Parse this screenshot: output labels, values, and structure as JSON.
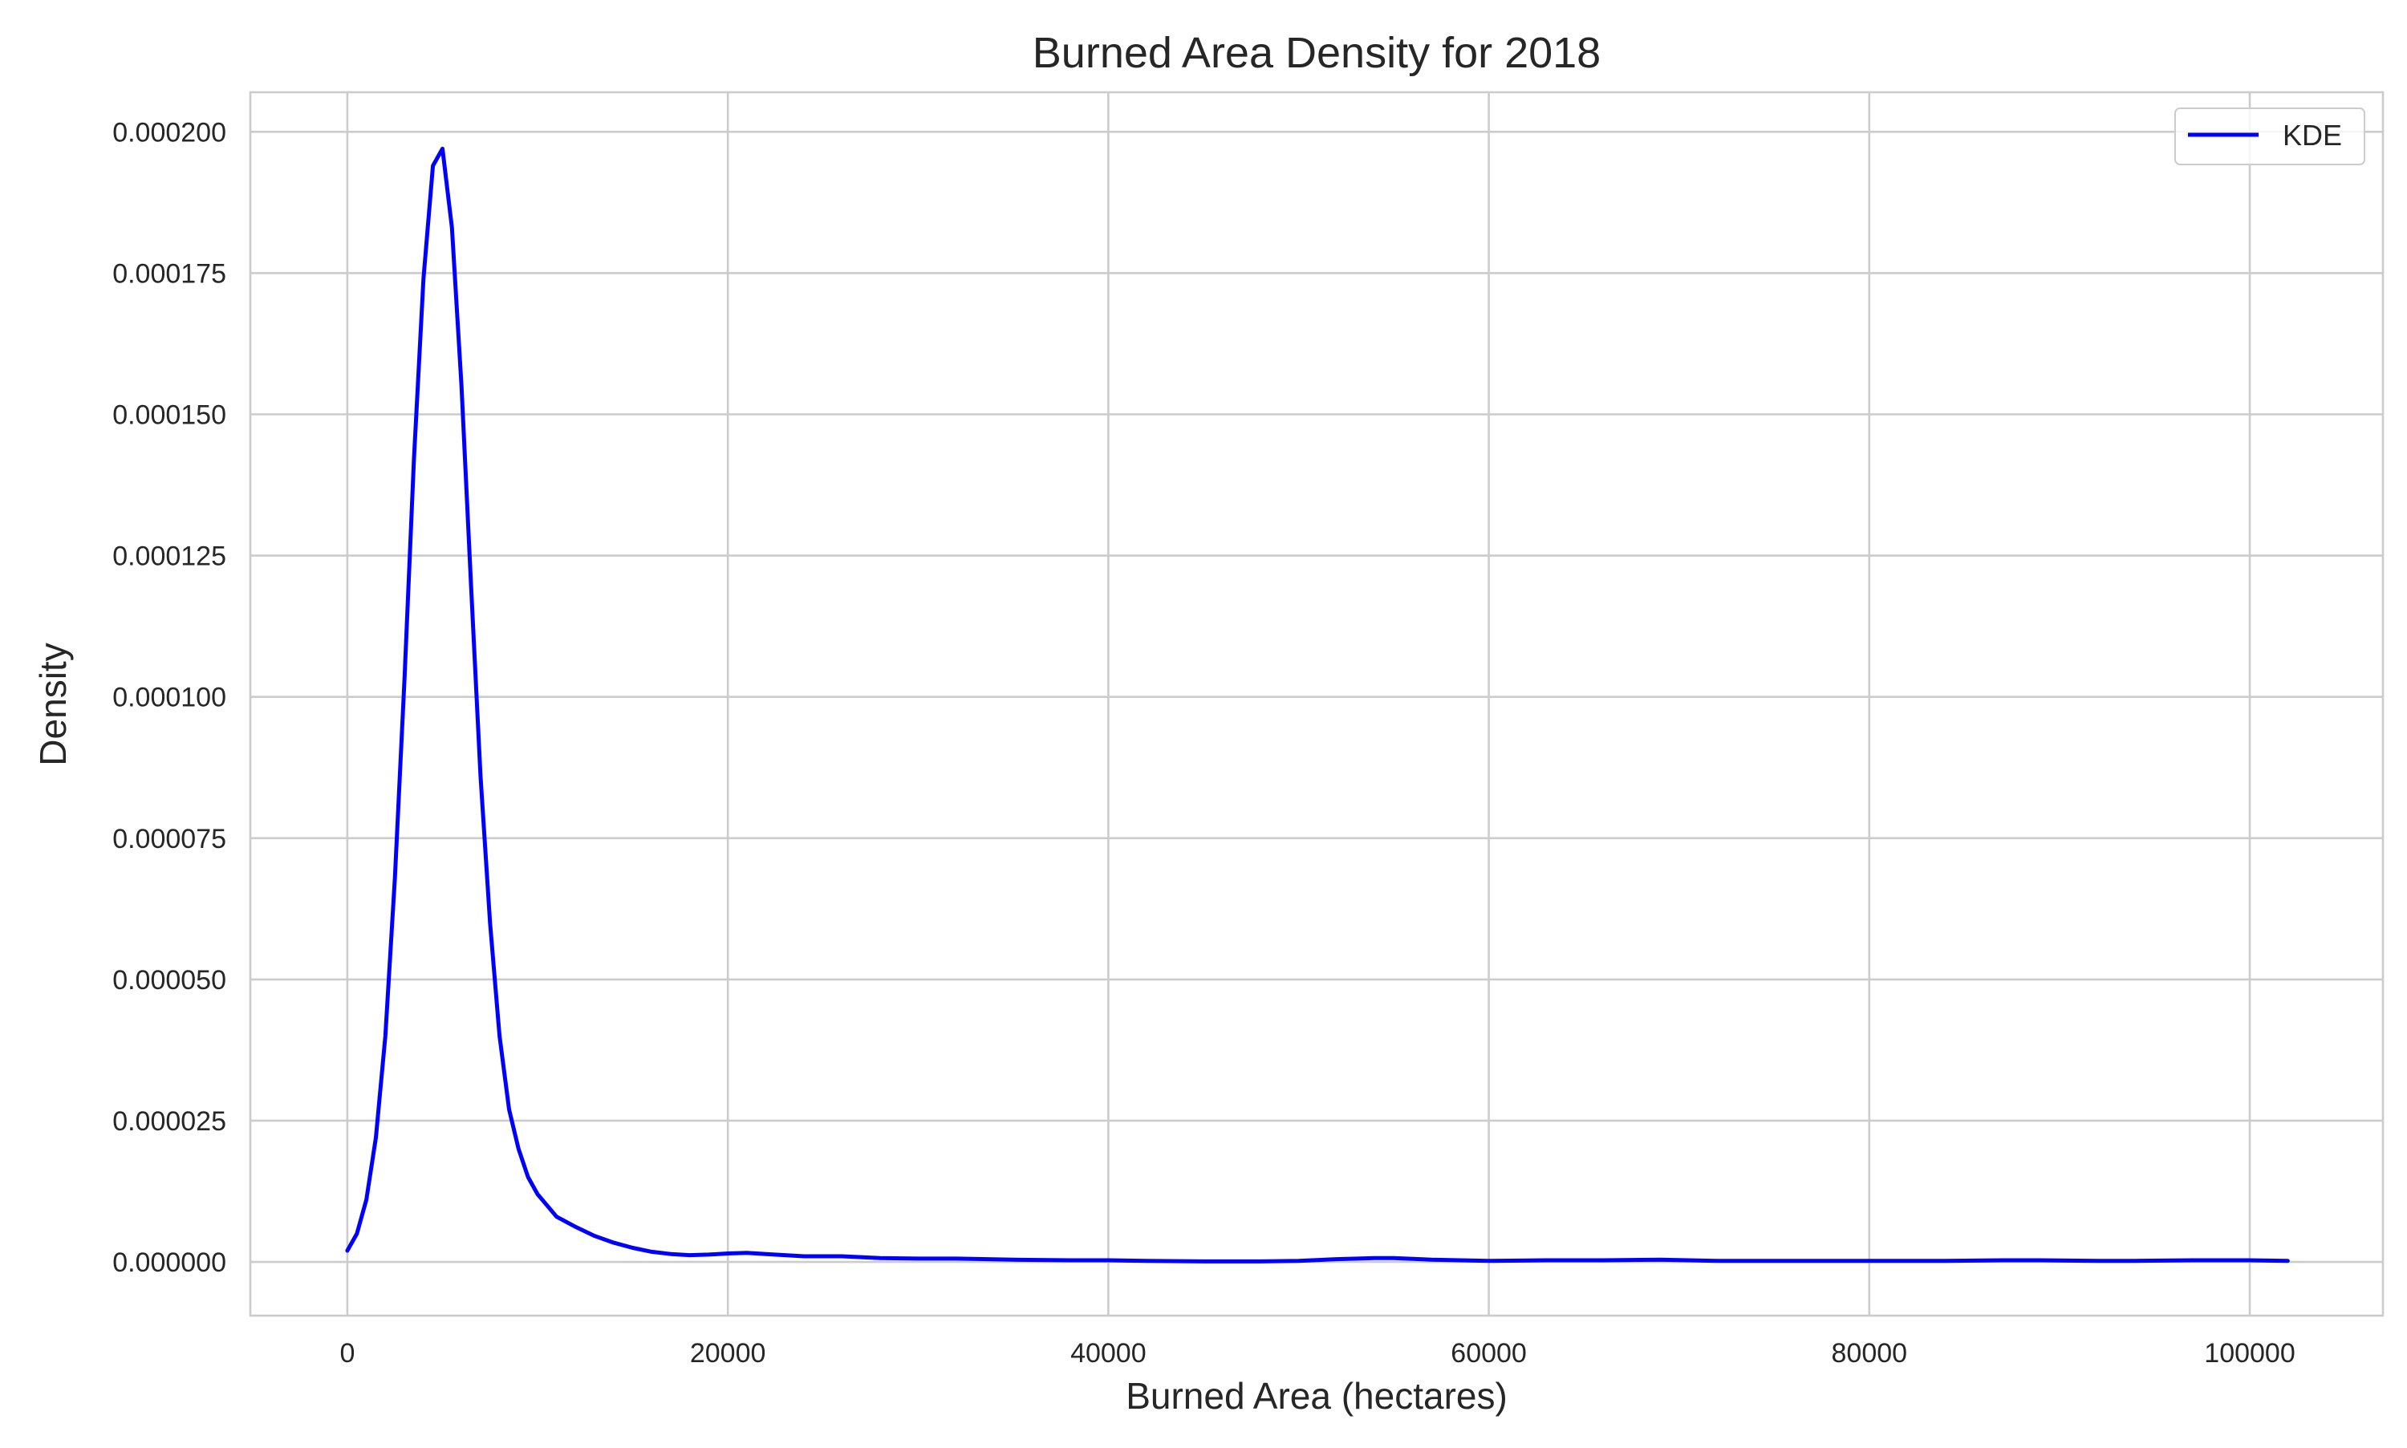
{
  "chart_data": {
    "type": "line",
    "title": "Burned Area Density for 2018",
    "xlabel": "Burned Area (hectares)",
    "ylabel": "Density",
    "xlim": [
      -5100,
      107000
    ],
    "ylim": [
      -9.5e-06,
      0.000207
    ],
    "x_ticks": [
      0,
      20000,
      40000,
      60000,
      80000,
      100000
    ],
    "x_tick_labels": [
      "0",
      "20000",
      "40000",
      "60000",
      "80000",
      "100000"
    ],
    "y_ticks": [
      0,
      2.5e-05,
      5e-05,
      7.5e-05,
      0.0001,
      0.000125,
      0.00015,
      0.000175,
      0.0002
    ],
    "y_tick_labels": [
      "0.000000",
      "0.000025",
      "0.000050",
      "0.000075",
      "0.000100",
      "0.000125",
      "0.000150",
      "0.000175",
      "0.000200"
    ],
    "grid": true,
    "legend_position": "top-right",
    "series": [
      {
        "name": "KDE",
        "color": "#0000ff",
        "x": [
          0,
          500,
          1000,
          1500,
          2000,
          2500,
          3000,
          3500,
          4000,
          4500,
          5000,
          5500,
          6000,
          6500,
          7000,
          7500,
          8000,
          8500,
          9000,
          9500,
          10000,
          11000,
          12000,
          13000,
          14000,
          15000,
          16000,
          17000,
          18000,
          19000,
          20000,
          21000,
          22000,
          24000,
          26000,
          28000,
          30000,
          32000,
          35000,
          38000,
          40000,
          42000,
          45000,
          48000,
          50000,
          52000,
          54000,
          55000,
          57000,
          60000,
          63000,
          66000,
          69000,
          72000,
          75000,
          78000,
          81000,
          84000,
          87000,
          89000,
          92000,
          94000,
          97000,
          100000,
          102000
        ],
        "y": [
          2e-06,
          5e-06,
          1.1e-05,
          2.2e-05,
          4e-05,
          6.8e-05,
          0.000103,
          0.000142,
          0.000174,
          0.000194,
          0.000197,
          0.000183,
          0.000155,
          0.00012,
          8.6e-05,
          6e-05,
          4e-05,
          2.7e-05,
          2e-05,
          1.5e-05,
          1.2e-05,
          8e-06,
          6.2e-06,
          4.6e-06,
          3.4e-06,
          2.5e-06,
          1.8e-06,
          1.4e-06,
          1.2e-06,
          1.3e-06,
          1.5e-06,
          1.6e-06,
          1.4e-06,
          1e-06,
          1e-06,
          7e-07,
          6e-07,
          6e-07,
          4e-07,
          3e-07,
          3e-07,
          2e-07,
          1e-07,
          1e-07,
          2e-07,
          5e-07,
          7e-07,
          7e-07,
          4e-07,
          2e-07,
          3e-07,
          3e-07,
          4e-07,
          2e-07,
          2e-07,
          2e-07,
          2e-07,
          2e-07,
          3e-07,
          3e-07,
          2e-07,
          2e-07,
          3e-07,
          3e-07,
          2e-07
        ]
      }
    ]
  }
}
